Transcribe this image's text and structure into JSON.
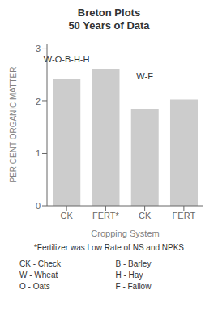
{
  "chart_data": {
    "type": "bar",
    "title": "Breton Plots\n50 Years of Data",
    "categories": [
      "CK",
      "FERT*",
      "CK",
      "FERT"
    ],
    "values": [
      2.43,
      2.62,
      1.85,
      2.04
    ],
    "color": "#cccccc",
    "xlabel": "Cropping System",
    "ylabel": "PER CENT ORGANIC MATTER",
    "ylim": [
      0,
      3.1
    ],
    "yticks": [
      0,
      1,
      2,
      3
    ],
    "grid": false,
    "annotations": [
      {
        "text": "W-O-B-H-H",
        "y": 2.72
      },
      {
        "text": "W-F",
        "y": 2.38
      }
    ],
    "footnote": "*Fertilizer was Low Rate of NS and NPKS",
    "abbreviations": [
      "CK - Check",
      "W - Wheat",
      "O - Oats",
      "B - Barley",
      "H - Hay",
      "F - Fallow"
    ]
  }
}
